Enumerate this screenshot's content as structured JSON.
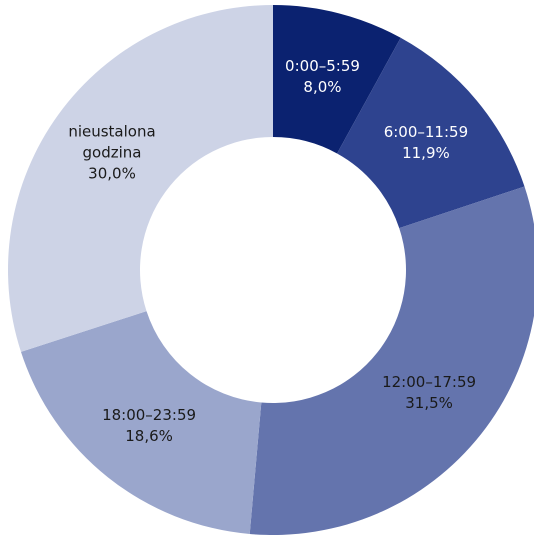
{
  "chart_data": {
    "type": "donut",
    "categories": [
      "0:00–5:59",
      "6:00–11:59",
      "12:00–17:59",
      "18:00–23:59",
      "nieustalona godzina"
    ],
    "values": [
      8.0,
      11.9,
      31.5,
      18.6,
      30.0
    ],
    "value_labels": [
      "8,0%",
      "11,9%",
      "31,5%",
      "18,6%",
      "30,0%"
    ],
    "colors": [
      "#0b2270",
      "#2e438f",
      "#6474ad",
      "#9aa6cc",
      "#cdd3e6"
    ]
  }
}
